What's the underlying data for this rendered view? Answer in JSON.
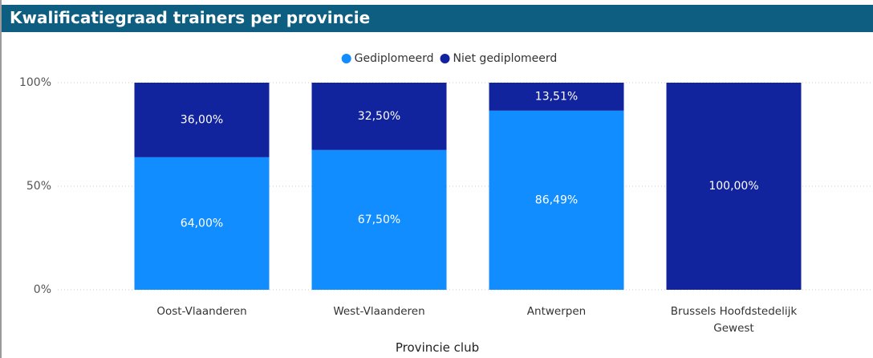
{
  "chart_data": {
    "type": "stacked_bar_100",
    "title": "Kwalificatiegraad trainers per provincie",
    "x_label": "Provincie club",
    "categories": [
      "Oost-Vlaanderen",
      "West-Vlaanderen",
      "Antwerpen",
      "Brussels Hoofdstedelijk Gewest"
    ],
    "series": [
      {
        "name": "Gediplomeerd",
        "color": "#118dff",
        "values": [
          64,
          67.5,
          86.49,
          0
        ],
        "value_labels": [
          "64,00%",
          "67,50%",
          "86,49%",
          null
        ]
      },
      {
        "name": "Niet gediplomeerd",
        "color": "#12239e",
        "values": [
          36,
          32.5,
          13.51,
          100
        ],
        "value_labels": [
          "36,00%",
          "32,50%",
          "13,51%",
          "100,00%"
        ]
      }
    ],
    "ylim": [
      0,
      100
    ],
    "yticks": [
      {
        "value": 0,
        "label": "0%"
      },
      {
        "value": 50,
        "label": "50%"
      },
      {
        "value": 100,
        "label": "100%"
      }
    ],
    "grid": true,
    "legend": "top"
  }
}
